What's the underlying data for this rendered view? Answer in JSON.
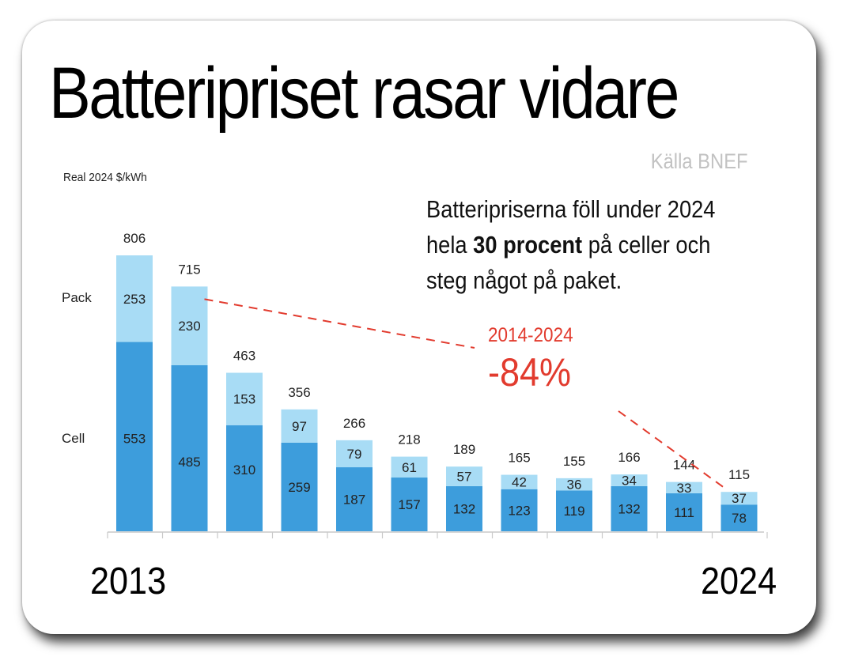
{
  "title": "Batteripriset rasar vidare",
  "source": "Källa BNEF",
  "callout": {
    "line1": "Batteripriserna föll under 2024",
    "line2_pre": "hela ",
    "line2_bold": "30 procent",
    "line2_post": " på celler och",
    "line3": "steg något på paket."
  },
  "annotation": {
    "period": "2014-2024",
    "change": "-84%",
    "color": "#e23b2e"
  },
  "axis_years": {
    "start": "2013",
    "end": "2024"
  },
  "chart_data": {
    "type": "bar",
    "stacked": true,
    "ylabel": "Real 2024 $/kWh",
    "series": [
      {
        "name": "Cell",
        "color": "#3d9ddc",
        "values": [
          553,
          485,
          310,
          259,
          187,
          157,
          132,
          123,
          119,
          132,
          111,
          78
        ]
      },
      {
        "name": "Pack",
        "color": "#a8dcf5",
        "values": [
          253,
          230,
          153,
          97,
          79,
          61,
          57,
          42,
          36,
          34,
          33,
          37
        ]
      }
    ],
    "totals": [
      806,
      715,
      463,
      356,
      266,
      218,
      189,
      165,
      155,
      166,
      144,
      115
    ],
    "legend_placement": "left"
  }
}
